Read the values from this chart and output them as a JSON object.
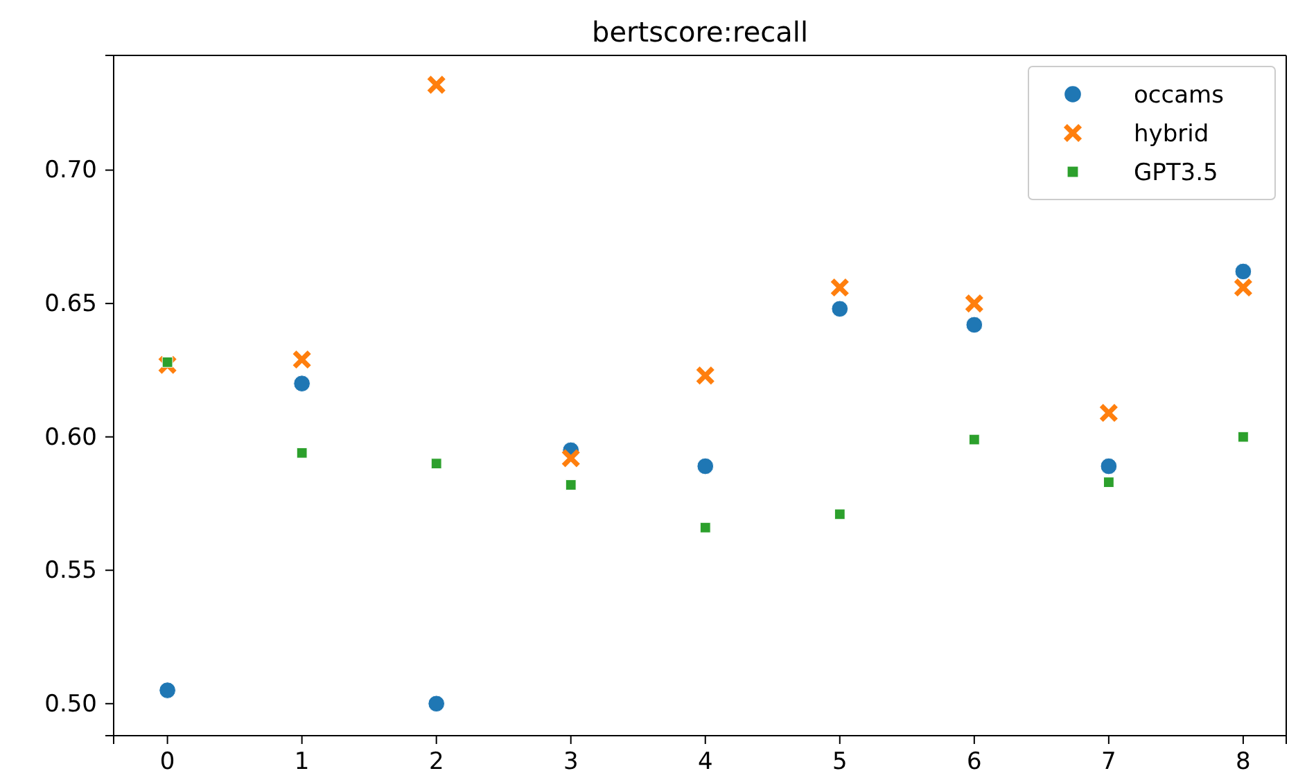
{
  "chart_data": {
    "type": "scatter",
    "title": "bertscore:recall",
    "x": [
      0,
      1,
      2,
      3,
      4,
      5,
      6,
      7,
      8
    ],
    "series": [
      {
        "name": "occams",
        "color": "#1f77b4",
        "marker": "circle",
        "values": [
          0.505,
          0.62,
          0.5,
          0.595,
          0.589,
          0.648,
          0.642,
          0.589,
          0.662
        ]
      },
      {
        "name": "hybrid",
        "color": "#ff7f0e",
        "marker": "cross",
        "values": [
          0.627,
          0.629,
          0.732,
          0.592,
          0.623,
          0.656,
          0.65,
          0.609,
          0.656
        ]
      },
      {
        "name": "GPT3.5",
        "color": "#2ca02c",
        "marker": "square",
        "values": [
          0.628,
          0.594,
          0.59,
          0.582,
          0.566,
          0.571,
          0.599,
          0.583,
          0.6
        ]
      }
    ],
    "xlim": [
      -0.4,
      8.32
    ],
    "xticks": [
      0,
      1,
      2,
      3,
      4,
      5,
      6,
      7,
      8
    ],
    "ylim": [
      0.488,
      0.743
    ],
    "yticks": [
      {
        "value": 0.5,
        "label": "0.50"
      },
      {
        "value": 0.55,
        "label": "0.55"
      },
      {
        "value": 0.6,
        "label": "0.60"
      },
      {
        "value": 0.65,
        "label": "0.65"
      },
      {
        "value": 0.7,
        "label": "0.70"
      }
    ],
    "grid": false,
    "legend": "top right"
  }
}
